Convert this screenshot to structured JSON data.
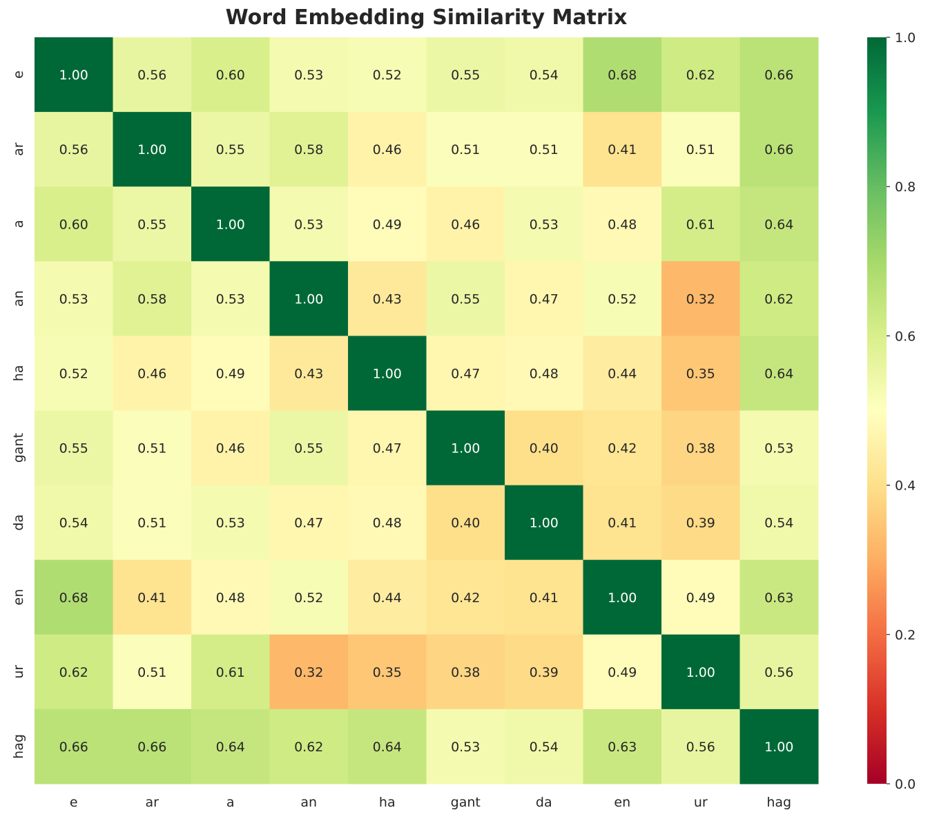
{
  "chart_data": {
    "type": "heatmap",
    "title": "Word Embedding Similarity Matrix",
    "xlabel": "",
    "ylabel": "",
    "x_categories": [
      "e",
      "ar",
      "a",
      "an",
      "ha",
      "gant",
      "da",
      "en",
      "ur",
      "hag"
    ],
    "y_categories": [
      "e",
      "ar",
      "a",
      "an",
      "ha",
      "gant",
      "da",
      "en",
      "ur",
      "hag"
    ],
    "values": [
      [
        1.0,
        0.56,
        0.6,
        0.53,
        0.52,
        0.55,
        0.54,
        0.68,
        0.62,
        0.66
      ],
      [
        0.56,
        1.0,
        0.55,
        0.58,
        0.46,
        0.51,
        0.51,
        0.41,
        0.51,
        0.66
      ],
      [
        0.6,
        0.55,
        1.0,
        0.53,
        0.49,
        0.46,
        0.53,
        0.48,
        0.61,
        0.64
      ],
      [
        0.53,
        0.58,
        0.53,
        1.0,
        0.43,
        0.55,
        0.47,
        0.52,
        0.32,
        0.62
      ],
      [
        0.52,
        0.46,
        0.49,
        0.43,
        1.0,
        0.47,
        0.48,
        0.44,
        0.35,
        0.64
      ],
      [
        0.55,
        0.51,
        0.46,
        0.55,
        0.47,
        1.0,
        0.4,
        0.42,
        0.38,
        0.53
      ],
      [
        0.54,
        0.51,
        0.53,
        0.47,
        0.48,
        0.4,
        1.0,
        0.41,
        0.39,
        0.54
      ],
      [
        0.68,
        0.41,
        0.48,
        0.52,
        0.44,
        0.42,
        0.41,
        1.0,
        0.49,
        0.63
      ],
      [
        0.62,
        0.51,
        0.61,
        0.32,
        0.35,
        0.38,
        0.39,
        0.49,
        1.0,
        0.56
      ],
      [
        0.66,
        0.66,
        0.64,
        0.62,
        0.64,
        0.53,
        0.54,
        0.63,
        0.56,
        1.0
      ]
    ],
    "annotation_format": "0.00",
    "colormap": "RdYlGn",
    "colorbar": {
      "range": [
        0.0,
        1.0
      ],
      "ticks": [
        "0.0",
        "0.2",
        "0.4",
        "0.6",
        "0.8",
        "1.0"
      ]
    },
    "grid": false
  }
}
